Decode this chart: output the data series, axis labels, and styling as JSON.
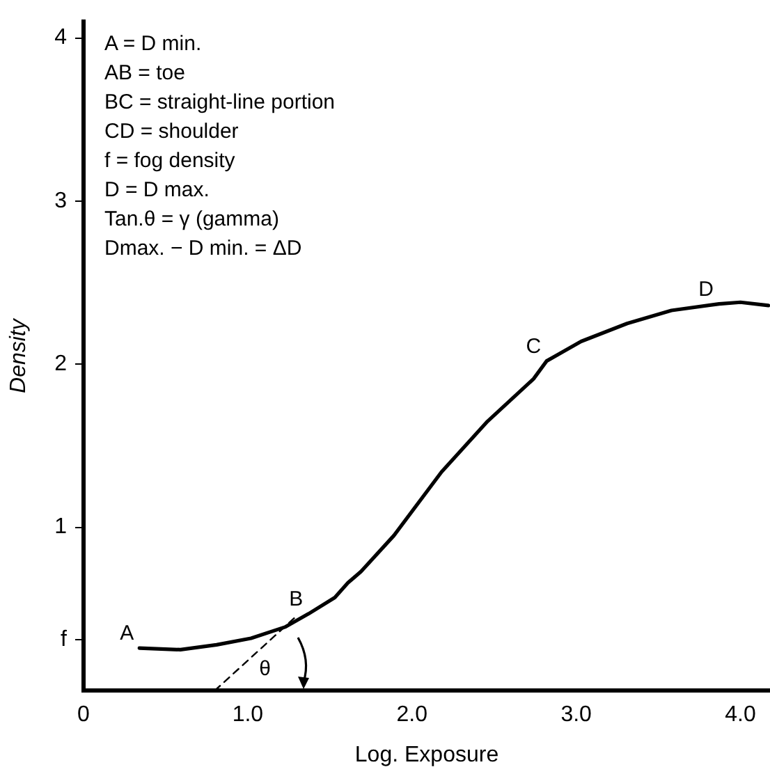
{
  "chart_data": {
    "type": "line",
    "xlabel": "Log. Exposure",
    "ylabel": "Density",
    "xlim": [
      0,
      4.18
    ],
    "ylim": [
      0,
      4.1
    ],
    "xticks": [
      0,
      {
        "value": 1,
        "label": "1.0"
      },
      {
        "value": 2,
        "label": "2.0"
      },
      {
        "value": 3,
        "label": "3.0"
      },
      {
        "value": 4,
        "label": "4.0"
      }
    ],
    "yticks": [
      {
        "value": 0.31,
        "label": "f"
      },
      1,
      2,
      3,
      4
    ],
    "marker": "none",
    "legend": false,
    "series": [
      {
        "color": "#000000",
        "line_style": "solid",
        "x": [
          0.34,
          0.59,
          0.81,
          1.02,
          1.23,
          1.37,
          1.53,
          1.61,
          1.69,
          1.89,
          2.18,
          2.46,
          2.74,
          2.82,
          3.03,
          3.31,
          3.58,
          3.87,
          4.0,
          4.17
        ],
        "values": [
          0.26,
          0.25,
          0.28,
          0.32,
          0.39,
          0.47,
          0.57,
          0.66,
          0.73,
          0.95,
          1.34,
          1.65,
          1.91,
          2.02,
          2.14,
          2.25,
          2.33,
          2.37,
          2.38,
          2.36
        ]
      },
      {
        "color": "#000000",
        "line_style": "dashed",
        "x": [
          0.8,
          1.29
        ],
        "values": [
          0,
          0.45
        ]
      }
    ],
    "annotations": [
      "A = D min.",
      "AB = toe",
      "BC = straight-line portion",
      "CD = shoulder",
      "f = fog density",
      "D = D max.",
      "Tan.θ = γ (gamma)",
      "Dmax. − D min. = ΔD",
      {
        "text": "A",
        "x": 0.34,
        "y": 0.26
      },
      {
        "text": "B",
        "x": 1.37,
        "y": 0.47
      },
      {
        "text": "C",
        "x": 2.82,
        "y": 2.02
      },
      {
        "text": "D",
        "x": 3.87,
        "y": 2.37
      },
      {
        "text": "θ",
        "x": 0.8,
        "y": 0
      }
    ]
  }
}
